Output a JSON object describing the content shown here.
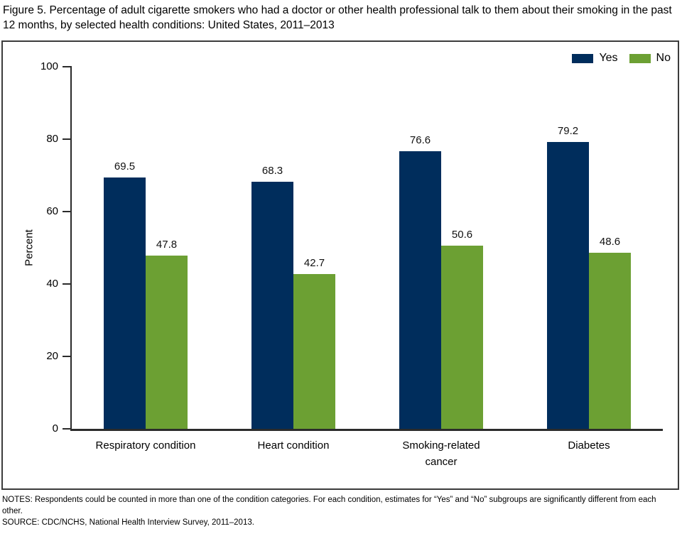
{
  "title": "Figure 5. Percentage of adult cigarette smokers who had a doctor or other health professional talk to them about their smoking in the past 12 months, by selected health conditions: United States, 2011–2013",
  "notes": "NOTES: Respondents could be counted in more than one of the condition categories. For each condition, estimates for “Yes” and “No” subgroups are significantly different from each other.",
  "source": "SOURCE: CDC/NCHS, National Health Interview Survey, 2011–2013.",
  "chart_data": {
    "type": "bar",
    "categories": [
      "Respiratory condition",
      "Heart condition",
      "Smoking-related cancer",
      "Diabetes"
    ],
    "series": [
      {
        "name": "Yes",
        "color": "#002d5c",
        "values": [
          69.5,
          68.3,
          76.6,
          79.2
        ]
      },
      {
        "name": "No",
        "color": "#6ca033",
        "values": [
          47.8,
          42.7,
          50.6,
          48.6
        ]
      }
    ],
    "title": "",
    "xlabel": "",
    "ylabel": "Percent",
    "ylim": [
      0,
      100
    ],
    "yticks": [
      0,
      20,
      40,
      60,
      80,
      100
    ],
    "grid": false,
    "legend_position": "top-right",
    "value_labels": true
  }
}
